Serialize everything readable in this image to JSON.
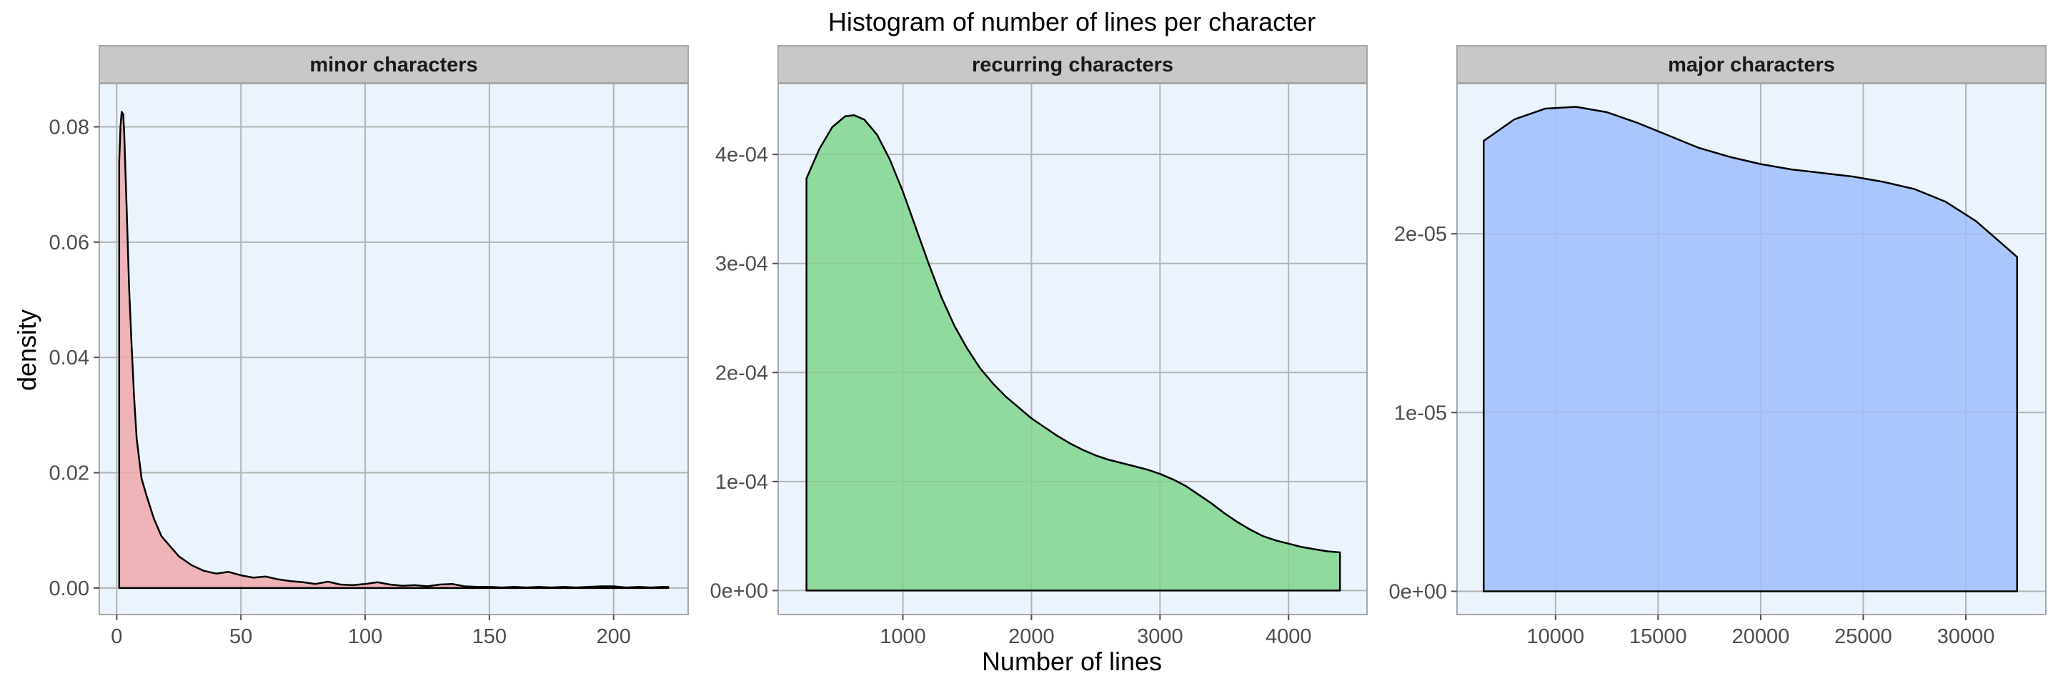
{
  "chart_data": {
    "type": "area",
    "title": "Histogram of number of lines per character",
    "xlabel": "Number of lines",
    "ylabel": "density",
    "grid": true,
    "colors": {
      "panel_background": "#ebf4fd",
      "strip_background": "#c8c8c8",
      "grid_line": "#b3b3b3",
      "outline": "#000000"
    },
    "panels": [
      {
        "strip": "minor characters",
        "fill": "#eea8aa",
        "xlim": [
          -7,
          230
        ],
        "ylim": [
          -0.0046,
          0.0875
        ],
        "x_ticks": [
          0,
          50,
          100,
          150,
          200
        ],
        "x_tick_labels": [
          "0",
          "50",
          "100",
          "150",
          "200"
        ],
        "y_ticks": [
          0,
          0.02,
          0.04,
          0.06,
          0.08
        ],
        "y_tick_labels": [
          "0.00",
          "0.02",
          "0.04",
          "0.06",
          "0.08"
        ],
        "points": [
          [
            1,
            0.0
          ],
          [
            1,
            0.074
          ],
          [
            1.5,
            0.08
          ],
          [
            2,
            0.0826
          ],
          [
            2.6,
            0.0822
          ],
          [
            3,
            0.079
          ],
          [
            4,
            0.066
          ],
          [
            5,
            0.052
          ],
          [
            6,
            0.042
          ],
          [
            7,
            0.033
          ],
          [
            8,
            0.026
          ],
          [
            10,
            0.019
          ],
          [
            12,
            0.016
          ],
          [
            15,
            0.012
          ],
          [
            18,
            0.009
          ],
          [
            22,
            0.007
          ],
          [
            25,
            0.0055
          ],
          [
            30,
            0.004
          ],
          [
            35,
            0.003
          ],
          [
            40,
            0.0025
          ],
          [
            45,
            0.0028
          ],
          [
            50,
            0.0022
          ],
          [
            55,
            0.0018
          ],
          [
            60,
            0.002
          ],
          [
            65,
            0.0015
          ],
          [
            70,
            0.0012
          ],
          [
            75,
            0.001
          ],
          [
            80,
            0.0007
          ],
          [
            85,
            0.0011
          ],
          [
            90,
            0.0006
          ],
          [
            95,
            0.0005
          ],
          [
            100,
            0.0007
          ],
          [
            105,
            0.001
          ],
          [
            110,
            0.0006
          ],
          [
            115,
            0.0004
          ],
          [
            120,
            0.0005
          ],
          [
            125,
            0.0003
          ],
          [
            130,
            0.0006
          ],
          [
            135,
            0.0007
          ],
          [
            140,
            0.0003
          ],
          [
            145,
            0.0002
          ],
          [
            150,
            0.0002
          ],
          [
            155,
            0.0001
          ],
          [
            160,
            0.0002
          ],
          [
            165,
            0.0001
          ],
          [
            170,
            0.0002
          ],
          [
            175,
            0.0001
          ],
          [
            180,
            0.0002
          ],
          [
            185,
            0.0001
          ],
          [
            190,
            0.0002
          ],
          [
            195,
            0.0003
          ],
          [
            200,
            0.0003
          ],
          [
            205,
            0.0001
          ],
          [
            210,
            0.0002
          ],
          [
            215,
            0.0001
          ],
          [
            220,
            0.0002
          ],
          [
            222,
            0.0002
          ],
          [
            222,
            0.0
          ]
        ]
      },
      {
        "strip": "recurring characters",
        "fill": "#80d38e",
        "xlim": [
          30,
          4610
        ],
        "ylim": [
          -2.2e-05,
          0.000465
        ],
        "x_ticks": [
          1000,
          2000,
          3000,
          4000
        ],
        "x_tick_labels": [
          "1000",
          "2000",
          "3000",
          "4000"
        ],
        "y_ticks": [
          0,
          0.0001,
          0.0002,
          0.0003,
          0.0004
        ],
        "y_tick_labels": [
          "0e+00",
          "1e-04",
          "2e-04",
          "3e-04",
          "4e-04"
        ],
        "points": [
          [
            250,
            0.0
          ],
          [
            250,
            0.000378
          ],
          [
            350,
            0.000405
          ],
          [
            450,
            0.000425
          ],
          [
            550,
            0.000435
          ],
          [
            620,
            0.000436
          ],
          [
            700,
            0.000432
          ],
          [
            800,
            0.000418
          ],
          [
            900,
            0.000395
          ],
          [
            1000,
            0.000366
          ],
          [
            1100,
            0.000333
          ],
          [
            1200,
            0.0003
          ],
          [
            1300,
            0.000269
          ],
          [
            1400,
            0.000243
          ],
          [
            1500,
            0.000222
          ],
          [
            1600,
            0.000204
          ],
          [
            1700,
            0.00019
          ],
          [
            1800,
            0.000178
          ],
          [
            1900,
            0.000168
          ],
          [
            2000,
            0.000158
          ],
          [
            2100,
            0.00015
          ],
          [
            2200,
            0.000142
          ],
          [
            2300,
            0.000135
          ],
          [
            2400,
            0.000129
          ],
          [
            2500,
            0.000124
          ],
          [
            2600,
            0.00012
          ],
          [
            2700,
            0.000117
          ],
          [
            2800,
            0.000114
          ],
          [
            2900,
            0.000111
          ],
          [
            3000,
            0.000107
          ],
          [
            3100,
            0.000102
          ],
          [
            3200,
            9.6e-05
          ],
          [
            3300,
            8.8e-05
          ],
          [
            3400,
            8e-05
          ],
          [
            3500,
            7.1e-05
          ],
          [
            3600,
            6.3e-05
          ],
          [
            3700,
            5.6e-05
          ],
          [
            3800,
            5e-05
          ],
          [
            3900,
            4.6e-05
          ],
          [
            4000,
            4.3e-05
          ],
          [
            4100,
            4e-05
          ],
          [
            4200,
            3.8e-05
          ],
          [
            4300,
            3.6e-05
          ],
          [
            4400,
            3.5e-05
          ],
          [
            4400,
            0.0
          ]
        ]
      },
      {
        "strip": "major characters",
        "fill": "#a0bdfb",
        "xlim": [
          5200,
          33900
        ],
        "ylim": [
          -1.3e-06,
          2.84e-05
        ],
        "x_ticks": [
          10000,
          15000,
          20000,
          25000,
          30000
        ],
        "x_tick_labels": [
          "10000",
          "15000",
          "20000",
          "25000",
          "30000"
        ],
        "y_ticks": [
          0,
          1e-05,
          2e-05
        ],
        "y_tick_labels": [
          "0e+00",
          "1e-05",
          "2e-05"
        ],
        "points": [
          [
            6500,
            0.0
          ],
          [
            6500,
            2.52e-05
          ],
          [
            8000,
            2.64e-05
          ],
          [
            9500,
            2.7e-05
          ],
          [
            11000,
            2.71e-05
          ],
          [
            12500,
            2.68e-05
          ],
          [
            14000,
            2.62e-05
          ],
          [
            15500,
            2.55e-05
          ],
          [
            17000,
            2.48e-05
          ],
          [
            18500,
            2.43e-05
          ],
          [
            20000,
            2.39e-05
          ],
          [
            21500,
            2.36e-05
          ],
          [
            23000,
            2.34e-05
          ],
          [
            24500,
            2.32e-05
          ],
          [
            26000,
            2.29e-05
          ],
          [
            27500,
            2.25e-05
          ],
          [
            29000,
            2.18e-05
          ],
          [
            30500,
            2.07e-05
          ],
          [
            31500,
            1.97e-05
          ],
          [
            32500,
            1.87e-05
          ],
          [
            32500,
            0.0
          ]
        ]
      }
    ]
  }
}
